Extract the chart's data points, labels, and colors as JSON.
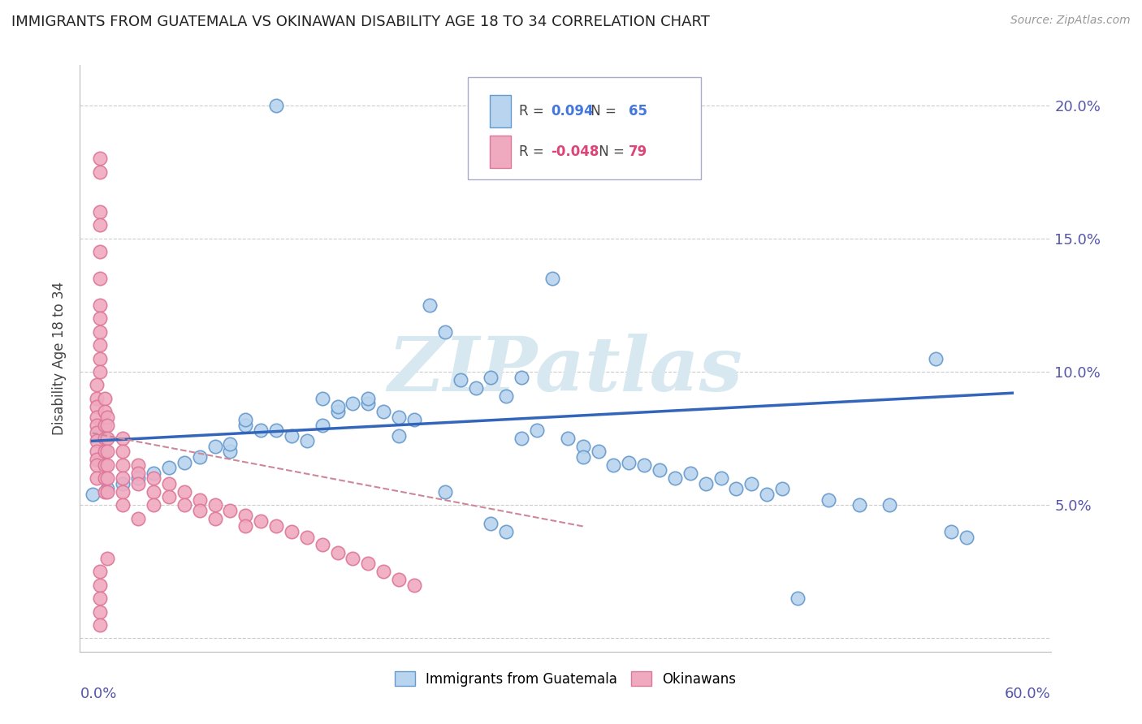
{
  "title": "IMMIGRANTS FROM GUATEMALA VS OKINAWAN DISABILITY AGE 18 TO 34 CORRELATION CHART",
  "source": "Source: ZipAtlas.com",
  "ylabel": "Disability Age 18 to 34",
  "watermark": "ZIPatlas",
  "blue_color": "#b8d4ee",
  "pink_color": "#f0aac0",
  "blue_edge": "#6699cc",
  "pink_edge": "#dd7799",
  "trend_blue_color": "#3366bb",
  "trend_pink_color": "#cc8899",
  "blue_trend_x": [
    0.0,
    0.6
  ],
  "blue_trend_y": [
    0.074,
    0.092
  ],
  "pink_trend_x": [
    0.0,
    0.32
  ],
  "pink_trend_y": [
    0.077,
    0.042
  ],
  "xlim": [
    -0.008,
    0.625
  ],
  "ylim": [
    -0.005,
    0.215
  ],
  "ytick_vals": [
    0.0,
    0.05,
    0.1,
    0.15,
    0.2
  ],
  "ytick_labels": [
    "",
    "5.0%",
    "10.0%",
    "15.0%",
    "20.0%"
  ],
  "xtick_vals": [
    0.0,
    0.1,
    0.2,
    0.3,
    0.4,
    0.5,
    0.6
  ],
  "blue_N": 65,
  "pink_N": 79,
  "blue_R": "0.094",
  "pink_R": "-0.048",
  "blue_scatter_x": [
    0.12,
    0.3,
    0.22,
    0.23,
    0.26,
    0.28,
    0.27,
    0.15,
    0.17,
    0.18,
    0.16,
    0.19,
    0.2,
    0.21,
    0.24,
    0.25,
    0.29,
    0.31,
    0.32,
    0.33,
    0.35,
    0.36,
    0.38,
    0.4,
    0.42,
    0.44,
    0.55,
    0.1,
    0.11,
    0.13,
    0.14,
    0.08,
    0.09,
    0.07,
    0.06,
    0.05,
    0.04,
    0.03,
    0.02,
    0.01,
    0.0,
    0.34,
    0.37,
    0.39,
    0.41,
    0.43,
    0.45,
    0.5,
    0.27,
    0.23,
    0.26,
    0.28,
    0.32,
    0.48,
    0.52,
    0.46,
    0.56,
    0.57,
    0.2,
    0.16,
    0.18,
    0.1,
    0.12,
    0.15,
    0.09
  ],
  "blue_scatter_y": [
    0.2,
    0.135,
    0.125,
    0.115,
    0.098,
    0.098,
    0.091,
    0.09,
    0.088,
    0.088,
    0.085,
    0.085,
    0.083,
    0.082,
    0.097,
    0.094,
    0.078,
    0.075,
    0.072,
    0.07,
    0.066,
    0.065,
    0.06,
    0.058,
    0.056,
    0.054,
    0.105,
    0.08,
    0.078,
    0.076,
    0.074,
    0.072,
    0.07,
    0.068,
    0.066,
    0.064,
    0.062,
    0.06,
    0.058,
    0.056,
    0.054,
    0.065,
    0.063,
    0.062,
    0.06,
    0.058,
    0.056,
    0.05,
    0.04,
    0.055,
    0.043,
    0.075,
    0.068,
    0.052,
    0.05,
    0.015,
    0.04,
    0.038,
    0.076,
    0.087,
    0.09,
    0.082,
    0.078,
    0.08,
    0.073
  ],
  "pink_scatter_x": [
    0.005,
    0.005,
    0.005,
    0.005,
    0.005,
    0.005,
    0.005,
    0.005,
    0.005,
    0.005,
    0.005,
    0.005,
    0.003,
    0.003,
    0.003,
    0.003,
    0.003,
    0.003,
    0.003,
    0.003,
    0.003,
    0.003,
    0.003,
    0.008,
    0.008,
    0.008,
    0.008,
    0.008,
    0.008,
    0.008,
    0.008,
    0.01,
    0.01,
    0.01,
    0.01,
    0.01,
    0.01,
    0.01,
    0.02,
    0.02,
    0.02,
    0.02,
    0.02,
    0.02,
    0.03,
    0.03,
    0.03,
    0.03,
    0.04,
    0.04,
    0.04,
    0.05,
    0.05,
    0.06,
    0.06,
    0.07,
    0.07,
    0.08,
    0.08,
    0.09,
    0.1,
    0.1,
    0.11,
    0.12,
    0.13,
    0.14,
    0.15,
    0.16,
    0.17,
    0.18,
    0.19,
    0.2,
    0.21,
    0.005,
    0.005,
    0.005,
    0.005,
    0.005,
    0.01
  ],
  "pink_scatter_y": [
    0.18,
    0.175,
    0.16,
    0.155,
    0.145,
    0.135,
    0.125,
    0.12,
    0.115,
    0.11,
    0.105,
    0.1,
    0.095,
    0.09,
    0.087,
    0.083,
    0.08,
    0.077,
    0.074,
    0.07,
    0.067,
    0.065,
    0.06,
    0.09,
    0.085,
    0.08,
    0.075,
    0.07,
    0.065,
    0.06,
    0.055,
    0.083,
    0.08,
    0.075,
    0.07,
    0.065,
    0.06,
    0.055,
    0.075,
    0.07,
    0.065,
    0.06,
    0.055,
    0.05,
    0.065,
    0.062,
    0.058,
    0.045,
    0.06,
    0.055,
    0.05,
    0.058,
    0.053,
    0.055,
    0.05,
    0.052,
    0.048,
    0.05,
    0.045,
    0.048,
    0.046,
    0.042,
    0.044,
    0.042,
    0.04,
    0.038,
    0.035,
    0.032,
    0.03,
    0.028,
    0.025,
    0.022,
    0.02,
    0.025,
    0.02,
    0.015,
    0.01,
    0.005,
    0.03
  ]
}
